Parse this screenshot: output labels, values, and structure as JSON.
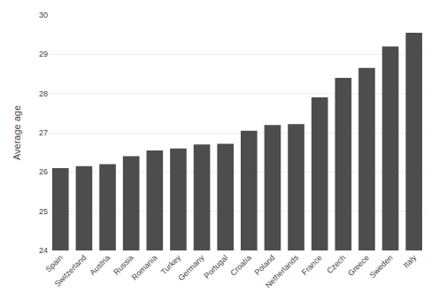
{
  "chart_data": {
    "type": "bar",
    "categories": [
      "Spain",
      "Switzerland",
      "Austria",
      "Russia",
      "Romania",
      "Turkey",
      "Germany",
      "Portugal",
      "Croatia",
      "Poland",
      "Netherlands",
      "France",
      "Czech",
      "Greece",
      "Sweden",
      "Italy"
    ],
    "values": [
      26.1,
      26.15,
      26.2,
      26.4,
      26.55,
      26.6,
      26.7,
      26.72,
      27.05,
      27.2,
      27.22,
      27.9,
      28.4,
      28.65,
      29.2,
      29.55
    ],
    "color": "#4d4d4d",
    "ylabel": "Average age",
    "ylim": [
      24,
      30
    ],
    "yticks": [
      24,
      25,
      26,
      27,
      28,
      29,
      30
    ],
    "grid": true
  }
}
